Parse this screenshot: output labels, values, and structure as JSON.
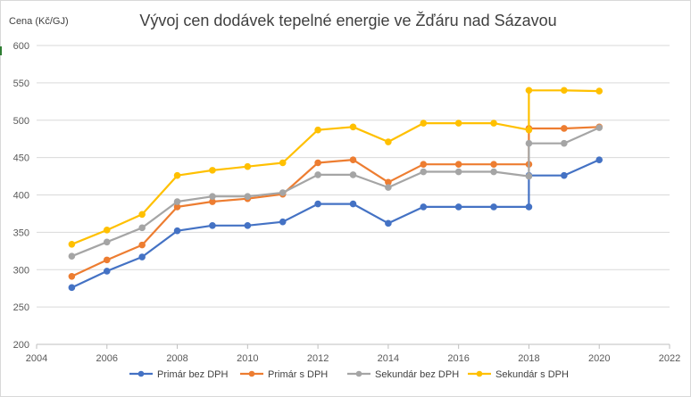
{
  "chart_data": {
    "type": "line",
    "title": "Vývoj cen dodávek tepelné energie ve Žďáru nad Sázavou",
    "ylabel": "Cena (Kč/GJ)",
    "xlabel": "",
    "xlim": [
      2004,
      2022
    ],
    "ylim": [
      200,
      600
    ],
    "xticks": [
      "2004",
      "2006",
      "2008",
      "2010",
      "2012",
      "2014",
      "2016",
      "2018",
      "2020",
      "2022"
    ],
    "yticks": [
      "200",
      "250",
      "300",
      "350",
      "400",
      "450",
      "500",
      "550",
      "600"
    ],
    "grid": "horizontal",
    "legend_position": "bottom",
    "series": [
      {
        "name": "Primár bez DPH",
        "color": "#4472c4",
        "points": [
          [
            2005,
            276
          ],
          [
            2006,
            298
          ],
          [
            2007,
            317
          ],
          [
            2008,
            352
          ],
          [
            2009,
            359
          ],
          [
            2010,
            359
          ],
          [
            2011,
            364
          ],
          [
            2012,
            388
          ],
          [
            2013,
            388
          ],
          [
            2014,
            362
          ],
          [
            2015,
            384
          ],
          [
            2016,
            384
          ],
          [
            2017,
            384
          ],
          [
            2018,
            384
          ],
          [
            2018,
            426
          ],
          [
            2019,
            426
          ],
          [
            2020,
            447
          ]
        ]
      },
      {
        "name": "Primár s DPH",
        "color": "#ed7d31",
        "points": [
          [
            2005,
            291
          ],
          [
            2006,
            313
          ],
          [
            2007,
            333
          ],
          [
            2008,
            384
          ],
          [
            2009,
            391
          ],
          [
            2010,
            395
          ],
          [
            2011,
            401
          ],
          [
            2012,
            443
          ],
          [
            2013,
            447
          ],
          [
            2014,
            417
          ],
          [
            2015,
            441
          ],
          [
            2016,
            441
          ],
          [
            2017,
            441
          ],
          [
            2018,
            441
          ],
          [
            2018,
            489
          ],
          [
            2019,
            489
          ],
          [
            2020,
            491
          ]
        ]
      },
      {
        "name": "Sekundár bez DPH",
        "color": "#a5a5a5",
        "points": [
          [
            2005,
            318
          ],
          [
            2006,
            337
          ],
          [
            2007,
            356
          ],
          [
            2008,
            391
          ],
          [
            2009,
            398
          ],
          [
            2010,
            398
          ],
          [
            2011,
            403
          ],
          [
            2012,
            427
          ],
          [
            2013,
            427
          ],
          [
            2014,
            410
          ],
          [
            2015,
            431
          ],
          [
            2016,
            431
          ],
          [
            2017,
            431
          ],
          [
            2018,
            425
          ],
          [
            2018,
            469
          ],
          [
            2019,
            469
          ],
          [
            2020,
            490
          ]
        ]
      },
      {
        "name": "Sekundár s DPH",
        "color": "#ffc000",
        "points": [
          [
            2005,
            334
          ],
          [
            2006,
            353
          ],
          [
            2007,
            374
          ],
          [
            2008,
            426
          ],
          [
            2009,
            433
          ],
          [
            2010,
            438
          ],
          [
            2011,
            443
          ],
          [
            2012,
            487
          ],
          [
            2013,
            491
          ],
          [
            2014,
            471
          ],
          [
            2015,
            496
          ],
          [
            2016,
            496
          ],
          [
            2017,
            496
          ],
          [
            2018,
            487
          ],
          [
            2018,
            540
          ],
          [
            2019,
            540
          ],
          [
            2020,
            539
          ]
        ]
      }
    ]
  }
}
